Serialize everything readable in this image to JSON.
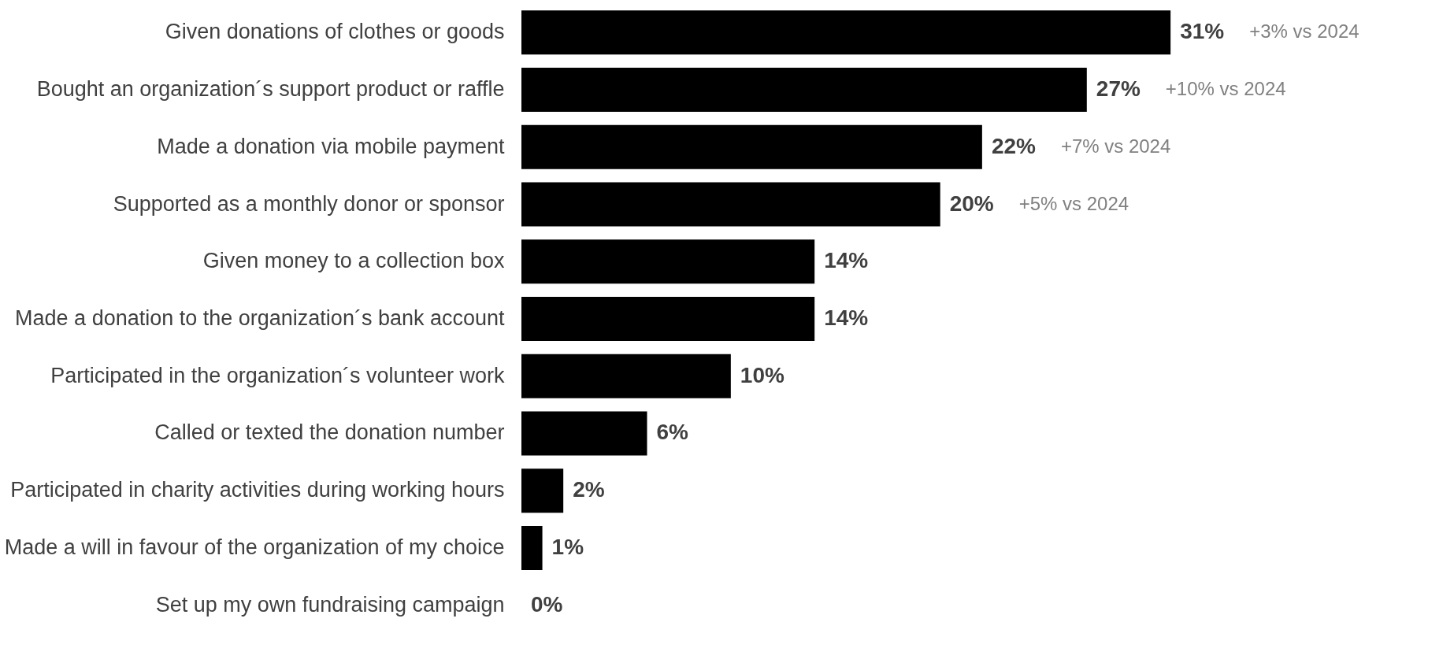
{
  "chart_data": {
    "type": "bar",
    "orientation": "horizontal",
    "categories": [
      "Given donations of clothes or goods",
      "Bought an organization´s support product or raffle",
      "Made a donation via mobile payment ",
      "Supported as a monthly donor or sponsor",
      "Given money to a collection box",
      "Made a donation to the organization´s bank account",
      "Participated in the organization´s volunteer work",
      "Called or texted the donation number",
      "Participated in charity activities during working hours",
      "Made a will in favour of the organization of my choice",
      "Set up my own fundraising campaign"
    ],
    "values": [
      31,
      27,
      22,
      20,
      14,
      14,
      10,
      6,
      2,
      1,
      0
    ],
    "value_labels": [
      "31%",
      "27%",
      "22%",
      "20%",
      "14%",
      "14%",
      "10%",
      "6%",
      "2%",
      "1%",
      "0%"
    ],
    "color": "#000000",
    "xlim": [
      0,
      41
    ],
    "tick_labels": "y",
    "annotations": [
      "+3% vs 2024",
      "+10% vs 2024",
      "+7% vs 2024",
      "+5% vs 2024"
    ]
  }
}
